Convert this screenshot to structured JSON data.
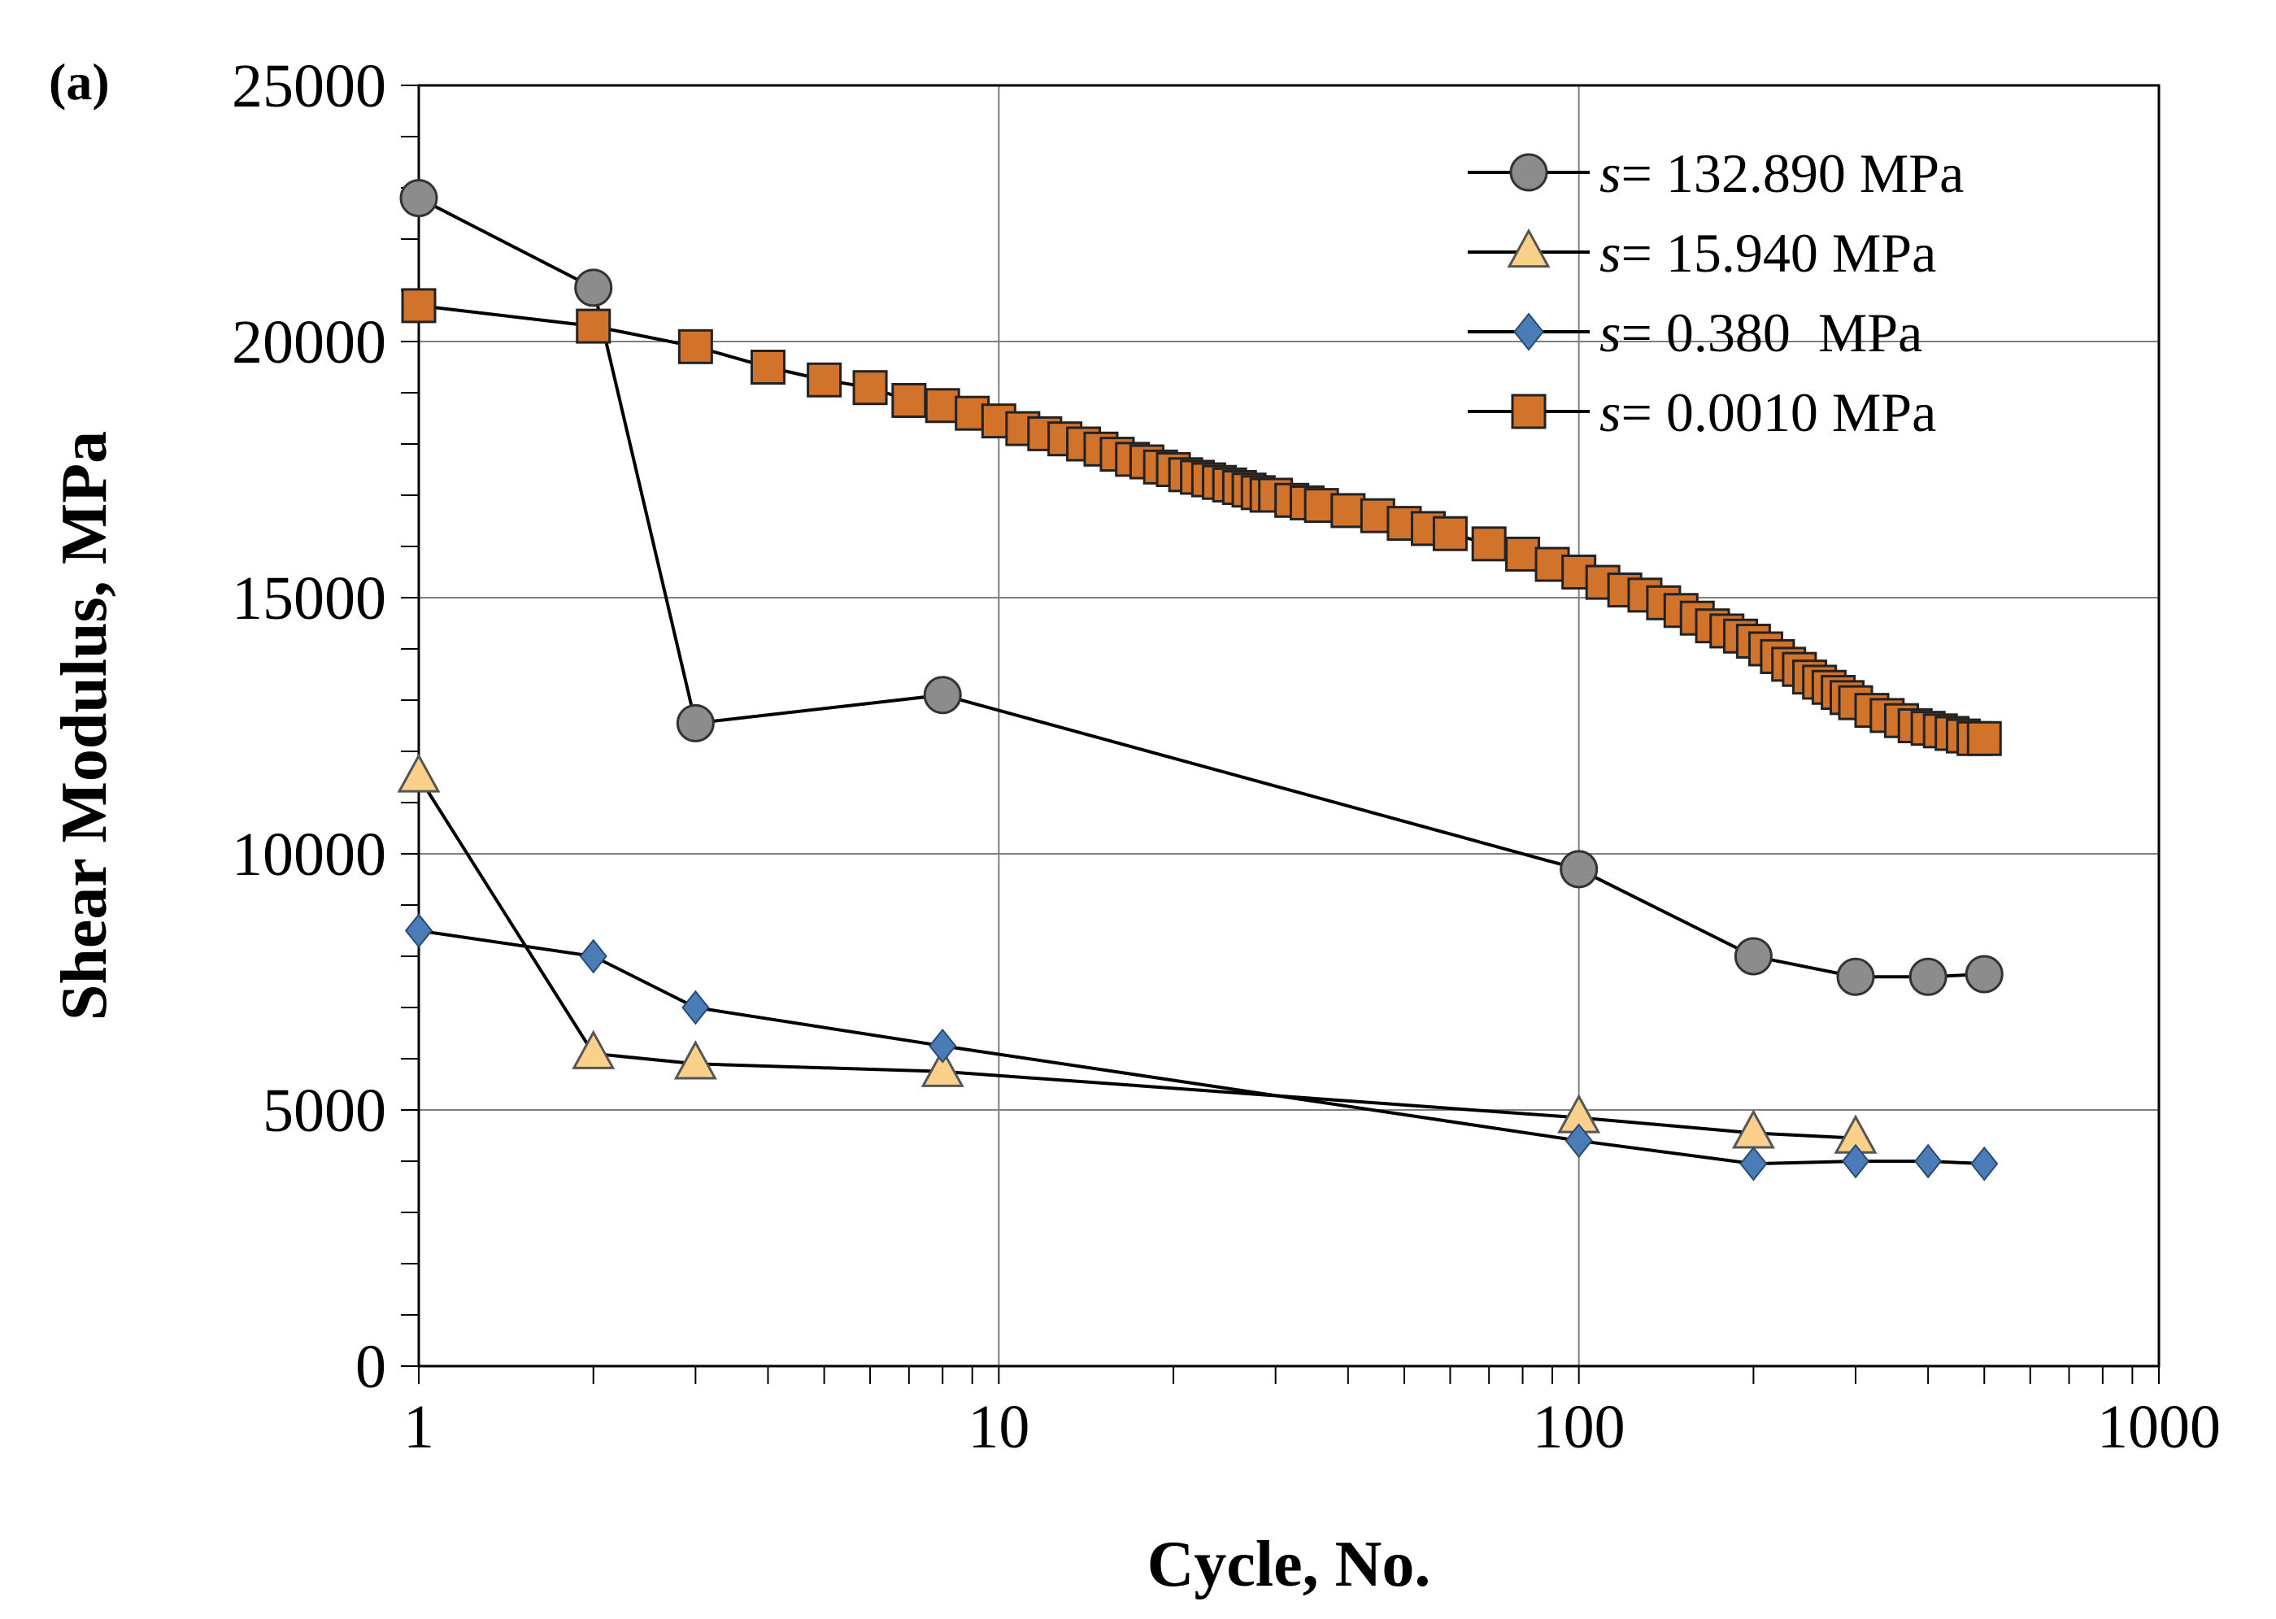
{
  "chart_data": {
    "type": "line",
    "panel_label": "(a)",
    "xlabel": "Cycle, No.",
    "ylabel": "Shear Modulus, MPa",
    "xscale": "log",
    "xlim": [
      1,
      1000
    ],
    "ylim": [
      0,
      25000
    ],
    "grid": true,
    "legend_position": "top-right",
    "x_tick_labels": [
      "1",
      "10",
      "100",
      "1000"
    ],
    "y_tick_labels": [
      "0",
      "5000",
      "10000",
      "15000",
      "20000",
      "25000"
    ],
    "series": [
      {
        "name": "s= 132.890 MPa",
        "legend_symbol": "s",
        "legend_rest": "= 132.890 MPa",
        "marker": "circle",
        "color": "#8c8c8c",
        "x": [
          1,
          2,
          3,
          8,
          100,
          200,
          300,
          400,
          500
        ],
        "y": [
          22800,
          21050,
          12550,
          13100,
          9700,
          8000,
          7600,
          7600,
          7650
        ]
      },
      {
        "name": "s= 15.940 MPa",
        "legend_symbol": "s",
        "legend_rest": "= 15.940 MPa",
        "marker": "triangle",
        "color": "#fad08a",
        "x": [
          1,
          2,
          3,
          8,
          100,
          200,
          300
        ],
        "y": [
          11500,
          6100,
          5900,
          5750,
          4850,
          4550,
          4450
        ]
      },
      {
        "name": "s= 0.380 MPa",
        "legend_symbol": "s",
        "legend_rest": "= 0.380  MPa",
        "marker": "diamond",
        "color": "#4a7db8",
        "x": [
          1,
          2,
          3,
          8,
          100,
          200,
          300,
          400,
          500
        ],
        "y": [
          8500,
          8000,
          7000,
          6250,
          4400,
          3950,
          4000,
          4000,
          3950
        ]
      },
      {
        "name": "s= 0.0010 MPa",
        "legend_symbol": "s",
        "legend_rest": "= 0.0010 MPa",
        "marker": "square",
        "color": "#d2732b",
        "x": [
          1,
          2,
          3,
          4,
          5,
          6,
          7,
          8,
          9,
          10,
          11,
          12,
          13,
          14,
          15,
          16,
          17,
          18,
          19,
          20,
          21,
          22,
          23,
          24,
          25,
          26,
          27,
          28,
          29,
          30,
          32,
          34,
          36,
          40,
          45,
          50,
          55,
          60,
          70,
          80,
          90,
          100,
          110,
          120,
          130,
          140,
          150,
          160,
          170,
          180,
          190,
          200,
          210,
          220,
          230,
          240,
          250,
          260,
          270,
          280,
          290,
          300,
          320,
          340,
          360,
          380,
          400,
          420,
          440,
          460,
          480,
          500
        ],
        "y": [
          20700,
          20300,
          19900,
          19500,
          19250,
          19100,
          18850,
          18750,
          18600,
          18450,
          18300,
          18200,
          18100,
          18000,
          17900,
          17800,
          17700,
          17650,
          17550,
          17500,
          17400,
          17350,
          17300,
          17250,
          17200,
          17150,
          17100,
          17050,
          17000,
          17000,
          16900,
          16850,
          16800,
          16700,
          16600,
          16450,
          16350,
          16250,
          16050,
          15850,
          15650,
          15500,
          15300,
          15150,
          15050,
          14900,
          14750,
          14600,
          14450,
          14350,
          14250,
          14150,
          14000,
          13850,
          13700,
          13600,
          13450,
          13350,
          13250,
          13150,
          13050,
          12950,
          12800,
          12700,
          12600,
          12500,
          12450,
          12400,
          12350,
          12300,
          12250,
          12250
        ]
      }
    ]
  }
}
